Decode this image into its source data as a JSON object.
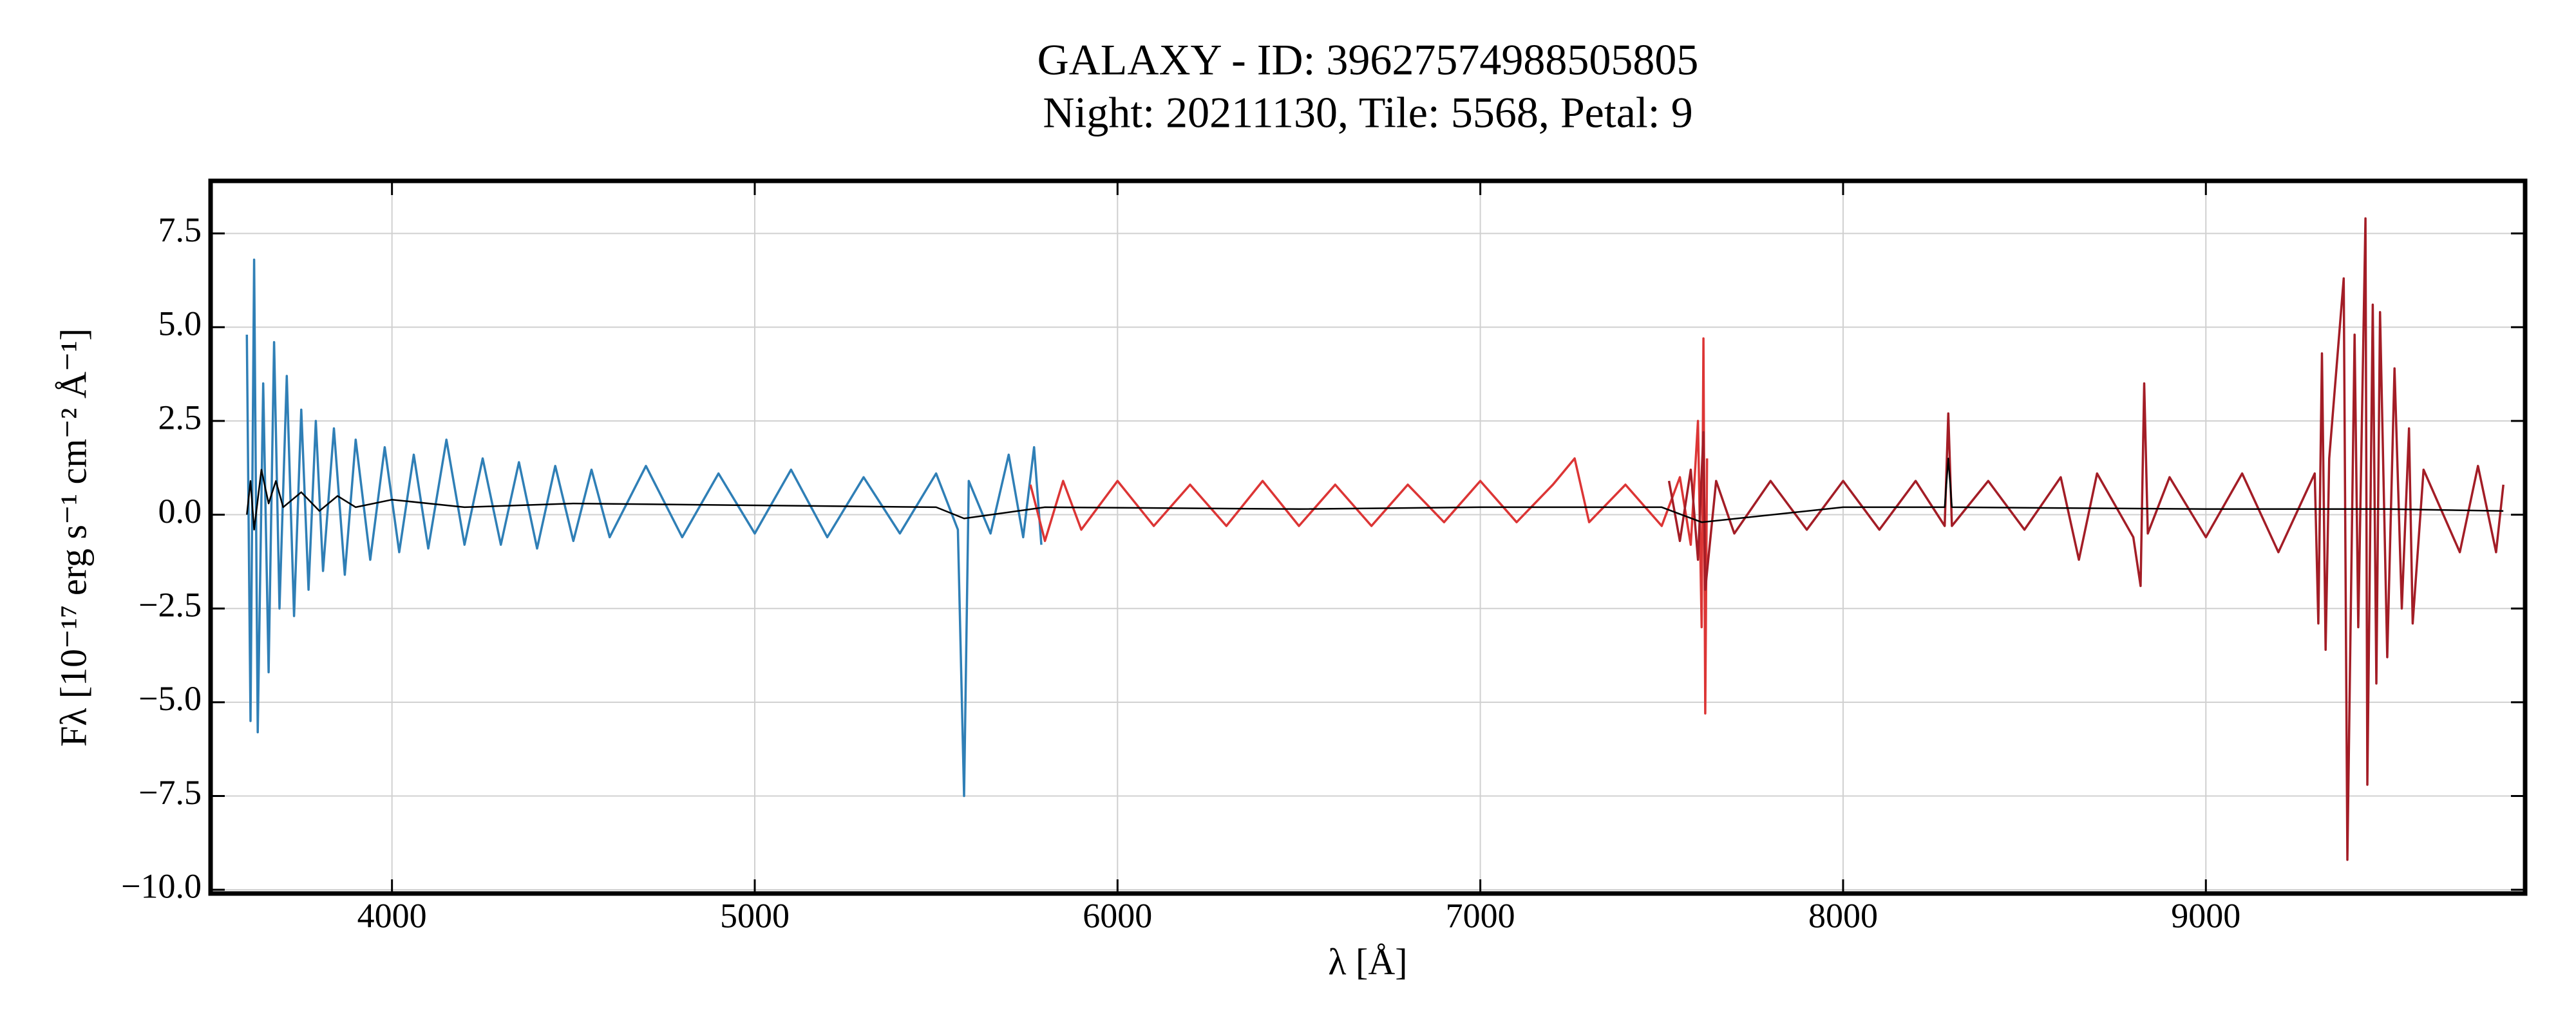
{
  "chart_data": {
    "type": "line",
    "title": "GALAXY - ID: 39627574988505805",
    "subtitle": "Night: 20211130, Tile: 5568, Petal: 9",
    "x_label": "λ [Å]",
    "y_label": "Fλ [10⁻¹⁷ erg s⁻¹ cm⁻² Å⁻¹]",
    "xlim": [
      3500,
      9880
    ],
    "ylim": [
      -10.1,
      8.9
    ],
    "xticks": [
      4000,
      5000,
      6000,
      7000,
      8000,
      9000
    ],
    "yticks": [
      {
        "value": -10,
        "label": "−10.0"
      },
      {
        "value": -7.5,
        "label": "−7.5"
      },
      {
        "value": -5,
        "label": "−5.0"
      },
      {
        "value": -2.5,
        "label": "−2.5"
      },
      {
        "value": 0,
        "label": "0.0"
      },
      {
        "value": 2.5,
        "label": "2.5"
      },
      {
        "value": 5,
        "label": "5.0"
      },
      {
        "value": 7.5,
        "label": "7.5"
      }
    ],
    "grid": true,
    "series": [
      {
        "color": "#2f7fb6",
        "x": [
          3600,
          3610,
          3620,
          3630,
          3645,
          3660,
          3675,
          3690,
          3710,
          3730,
          3750,
          3770,
          3790,
          3810,
          3840,
          3870,
          3900,
          3940,
          3980,
          4020,
          4060,
          4100,
          4150,
          4200,
          4250,
          4300,
          4350,
          4400,
          4450,
          4500,
          4550,
          4600,
          4700,
          4800,
          4900,
          5000,
          5100,
          5200,
          5300,
          5400,
          5500,
          5560,
          5577,
          5590,
          5650,
          5700,
          5740,
          5770,
          5790
        ],
        "values": [
          4.8,
          -5.5,
          6.8,
          -5.8,
          3.5,
          -4.2,
          4.6,
          -2.5,
          3.7,
          -2.7,
          2.8,
          -2.0,
          2.5,
          -1.5,
          2.3,
          -1.6,
          2.0,
          -1.2,
          1.8,
          -1.0,
          1.6,
          -0.9,
          2.0,
          -0.8,
          1.5,
          -0.8,
          1.4,
          -0.9,
          1.3,
          -0.7,
          1.2,
          -0.6,
          1.3,
          -0.6,
          1.1,
          -0.5,
          1.2,
          -0.6,
          1.0,
          -0.5,
          1.1,
          -0.4,
          -7.5,
          0.9,
          -0.5,
          1.6,
          -0.6,
          1.8,
          -0.8
        ]
      },
      {
        "color": "#dc3535",
        "x": [
          5760,
          5800,
          5850,
          5900,
          6000,
          6100,
          6200,
          6300,
          6400,
          6500,
          6600,
          6700,
          6800,
          6900,
          7000,
          7100,
          7200,
          7260,
          7300,
          7400,
          7500,
          7550,
          7580,
          7600,
          7610,
          7615,
          7620,
          7625
        ],
        "values": [
          0.8,
          -0.7,
          0.9,
          -0.4,
          0.9,
          -0.3,
          0.8,
          -0.3,
          0.9,
          -0.3,
          0.8,
          -0.3,
          0.8,
          -0.2,
          0.9,
          -0.2,
          0.8,
          1.5,
          -0.2,
          0.8,
          -0.3,
          1.0,
          -0.8,
          2.5,
          -3.0,
          4.7,
          -5.3,
          1.5
        ]
      },
      {
        "color": "#a31d26",
        "x": [
          7520,
          7550,
          7580,
          7600,
          7615,
          7620,
          7650,
          7700,
          7800,
          7900,
          8000,
          8100,
          8200,
          8280,
          8290,
          8300,
          8400,
          8500,
          8600,
          8650,
          8700,
          8800,
          8820,
          8830,
          8840,
          8900,
          9000,
          9100,
          9200,
          9300,
          9310,
          9320,
          9330,
          9340,
          9380,
          9390,
          9410,
          9420,
          9440,
          9445,
          9460,
          9470,
          9480,
          9500,
          9520,
          9540,
          9560,
          9570,
          9600,
          9700,
          9750,
          9800,
          9820
        ],
        "values": [
          0.9,
          -0.7,
          1.2,
          -1.2,
          2.2,
          -2.0,
          0.9,
          -0.5,
          0.9,
          -0.4,
          0.9,
          -0.4,
          0.9,
          -0.3,
          2.7,
          -0.3,
          0.9,
          -0.4,
          1.0,
          -1.2,
          1.1,
          -0.6,
          -1.9,
          3.5,
          -0.5,
          1.0,
          -0.6,
          1.1,
          -1.0,
          1.1,
          -2.9,
          4.3,
          -3.6,
          1.5,
          6.3,
          -9.2,
          4.8,
          -3.0,
          7.9,
          -7.2,
          5.6,
          -4.5,
          5.4,
          -3.8,
          3.9,
          -2.5,
          2.3,
          -2.9,
          1.2,
          -1.0,
          1.3,
          -1.0,
          0.8
        ]
      },
      {
        "color": "#000000",
        "x": [
          3600,
          3610,
          3620,
          3640,
          3660,
          3680,
          3700,
          3750,
          3800,
          3850,
          3900,
          4000,
          4200,
          4500,
          5000,
          5500,
          5577,
          5800,
          6500,
          7000,
          7500,
          7610,
          8000,
          8280,
          8290,
          8300,
          9000,
          9500,
          9820
        ],
        "values": [
          0.0,
          0.9,
          -0.4,
          1.2,
          0.3,
          0.9,
          0.2,
          0.6,
          0.1,
          0.5,
          0.2,
          0.4,
          0.2,
          0.3,
          0.25,
          0.2,
          -0.1,
          0.2,
          0.15,
          0.2,
          0.2,
          -0.2,
          0.2,
          0.2,
          1.5,
          0.2,
          0.15,
          0.15,
          0.1
        ]
      }
    ]
  }
}
